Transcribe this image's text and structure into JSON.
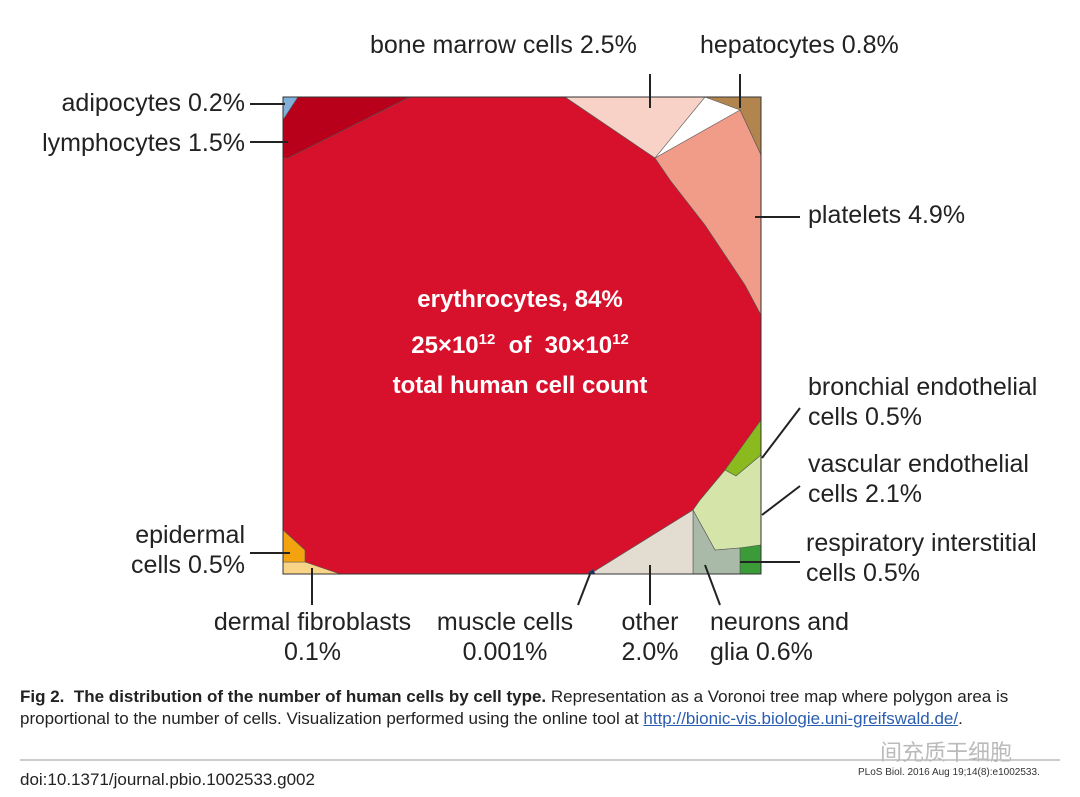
{
  "chart_data": {
    "type": "voronoi_treemap",
    "categories": [
      "erythrocytes,",
      "adipocytes",
      "lymphocytes",
      "bone marrow cells",
      "hepatocytes",
      "platelets",
      "bronchial endothelial cells",
      "vascular endothelial cells",
      "respiratory interstitial cells",
      "neurons and glia",
      "other",
      "muscle cells",
      "dermal fibroblasts",
      "epidermal cells"
    ],
    "values": [
      84,
      0.2,
      1.5,
      2.5,
      0.8,
      4.9,
      0.5,
      2.1,
      0.5,
      0.6,
      2.0,
      0.001,
      0.1,
      0.5
    ],
    "value_labels": [
      "84%",
      "0.2%",
      "1.5%",
      "2.5%",
      "0.8%",
      "4.9%",
      "0.5%",
      "2.1%",
      "0.5%",
      "0.6%",
      "2.0%",
      "0.001%",
      "0.1%",
      "0.5%"
    ],
    "colors": [
      "#d7102b",
      "#80b0da",
      "#b8001a",
      "#f8d2c6",
      "#b3854e",
      "#f19b89",
      "#8bba1e",
      "#d5e5a9",
      "#3b9b38",
      "#a9baa8",
      "#e2ddd0",
      "#1a2a6a",
      "#f9d386",
      "#f2a30e"
    ],
    "center_note": {
      "base1": "25×10",
      "exp1": "12",
      "of": "of",
      "base2": "30×10",
      "exp2": "12",
      "line3": "total human cell count"
    }
  },
  "caption": {
    "label": "Fig 2.",
    "title": "The distribution of the number of human cells by cell type.",
    "text": "Representation as a Voronoi tree map where polygon area is proportional to the number of cells. Visualization performed using the online tool at",
    "link": "http://bionic-vis.biologie.uni-greifswald.de/",
    "end": "."
  },
  "doi": "doi:10.1371/journal.pbio.1002533.g002",
  "citation": "PLoS Biol. 2016 Aug 19;14(8):e1002533.",
  "watermark": "间充质干细胞"
}
